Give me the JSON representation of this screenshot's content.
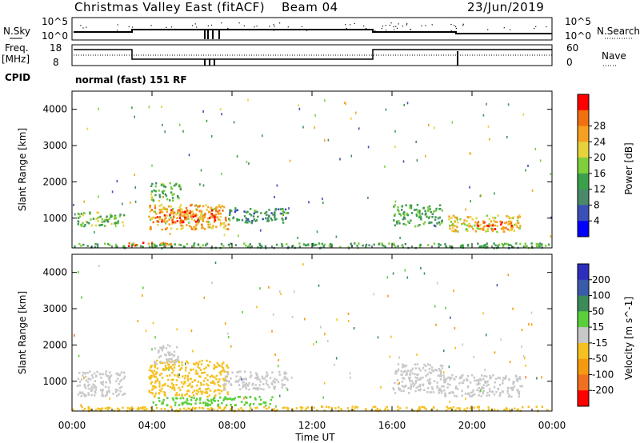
{
  "header": {
    "station": "Christmas Valley East (fitACF)",
    "beam": "Beam 04",
    "date": "23/Jun/2019"
  },
  "strip_labels": {
    "nsky": "N.Sky",
    "nsearch": "N.Search",
    "nsky_ticks": [
      "10^5",
      "10^0"
    ],
    "nsearch_ticks": [
      "10^5",
      "10^0"
    ],
    "freq": "Freq.",
    "freq_unit": "[MHz]",
    "freq_ticks": [
      "18",
      "8"
    ],
    "nave": "Nave",
    "nave_ticks": [
      "60",
      "0"
    ],
    "cpid_label": "CPID",
    "cpid_value": "normal (fast) 151 RF"
  },
  "colors": {
    "power": [
      "#0000ff",
      "#3b4fb8",
      "#4a8a6a",
      "#3aa04a",
      "#7ecf3a",
      "#e6d23a",
      "#f5a020",
      "#f07010",
      "#ff0000"
    ],
    "velocity": [
      "#2e2ebe",
      "#3a5aaa",
      "#3a8a5a",
      "#5acf3a",
      "#c8c8c8",
      "#f5c020",
      "#f59a10",
      "#f07020",
      "#ff0000"
    ]
  },
  "chart_data": [
    {
      "type": "heatmap",
      "title": "",
      "xlabel": "Time UT",
      "ylabel": "Slant Range [km]",
      "x_ticks": [
        "00:00",
        "04:00",
        "08:00",
        "12:00",
        "16:00",
        "20:00",
        "00:00"
      ],
      "y_ticks": [
        "1000",
        "2000",
        "3000",
        "4000"
      ],
      "xlim_hours": [
        0,
        24
      ],
      "ylim_km": [
        180,
        4500
      ],
      "colorbar_label": "Power [dB]",
      "colorbar_ticks": [
        "4",
        "8",
        "12",
        "16",
        "20",
        "24",
        "28"
      ],
      "colorbar_range": [
        0,
        32
      ],
      "regions": [
        {
          "t0": 0.2,
          "t1": 2.6,
          "r0": 800,
          "r1": 1200,
          "value": 14
        },
        {
          "t0": 3.8,
          "t1": 7.8,
          "r0": 700,
          "r1": 1400,
          "value": 22
        },
        {
          "t0": 4.2,
          "t1": 7.4,
          "r0": 900,
          "r1": 1250,
          "value": 27
        },
        {
          "t0": 3.9,
          "t1": 5.4,
          "r0": 1500,
          "r1": 2000,
          "value": 14
        },
        {
          "t0": 7.8,
          "t1": 10.8,
          "r0": 900,
          "r1": 1300,
          "value": 10
        },
        {
          "t0": 2.8,
          "t1": 5.0,
          "r0": 250,
          "r1": 350,
          "value": 26
        },
        {
          "t0": 16.0,
          "t1": 18.5,
          "r0": 800,
          "r1": 1400,
          "value": 12
        },
        {
          "t0": 18.8,
          "t1": 22.4,
          "r0": 650,
          "r1": 1100,
          "value": 20
        },
        {
          "t0": 20.0,
          "t1": 22.0,
          "r0": 700,
          "r1": 950,
          "value": 26
        },
        {
          "t0": 0.0,
          "t1": 24.0,
          "r0": 200,
          "r1": 330,
          "value": 12
        }
      ]
    },
    {
      "type": "heatmap",
      "title": "",
      "xlabel": "Time UT",
      "ylabel": "Slant Range [km]",
      "x_ticks": [
        "00:00",
        "04:00",
        "08:00",
        "12:00",
        "16:00",
        "20:00",
        "00:00"
      ],
      "y_ticks": [
        "1000",
        "2000",
        "3000",
        "4000"
      ],
      "xlim_hours": [
        0,
        24
      ],
      "ylim_km": [
        180,
        4500
      ],
      "colorbar_label": "Velocity [m s^-1]",
      "colorbar_ticks": [
        "200",
        "100",
        "50",
        "15",
        "-15",
        "-50",
        "-100",
        "-200"
      ],
      "colorbar_range": [
        -250,
        250
      ],
      "regions": [
        {
          "t0": 0.2,
          "t1": 2.6,
          "r0": 600,
          "r1": 1300,
          "value": 0
        },
        {
          "t0": 3.8,
          "t1": 7.8,
          "r0": 600,
          "r1": 1600,
          "value": -40
        },
        {
          "t0": 4.0,
          "t1": 5.3,
          "r0": 1500,
          "r1": 2000,
          "value": 0
        },
        {
          "t0": 7.5,
          "t1": 10.8,
          "r0": 800,
          "r1": 1300,
          "value": 0
        },
        {
          "t0": 4.0,
          "t1": 10.0,
          "r0": 350,
          "r1": 600,
          "value": 40
        },
        {
          "t0": 16.0,
          "t1": 18.5,
          "r0": 700,
          "r1": 1500,
          "value": 0
        },
        {
          "t0": 18.5,
          "t1": 22.5,
          "r0": 600,
          "r1": 1200,
          "value": 0
        },
        {
          "t0": 0.0,
          "t1": 24.0,
          "r0": 200,
          "r1": 330,
          "value": -40
        }
      ]
    }
  ]
}
